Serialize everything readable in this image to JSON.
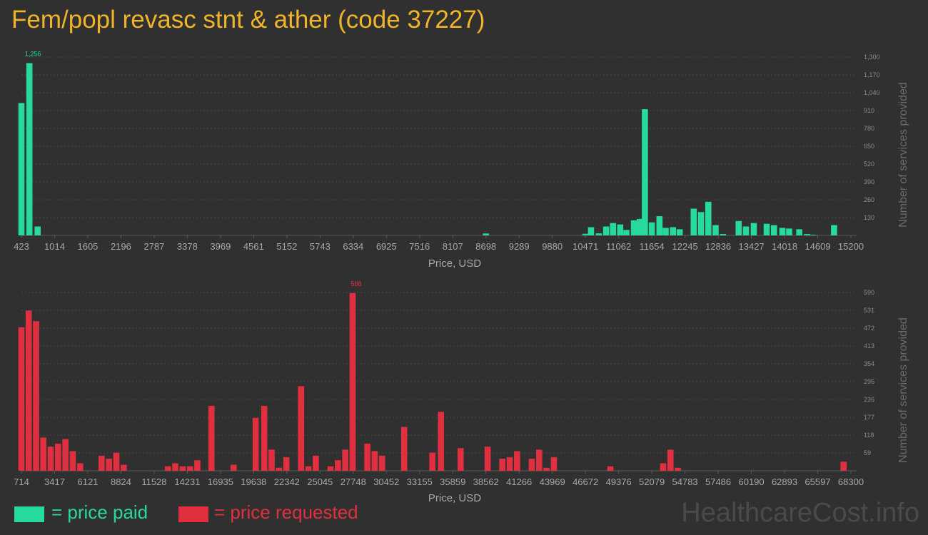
{
  "title": "Fem/popl revasc stnt & ather (code 37227)",
  "watermark": "HealthcareCost.info",
  "legend": {
    "paid_label": "= price paid",
    "requested_label": "= price requested",
    "paid_color": "#27d99a",
    "requested_color": "#e03040"
  },
  "chart_data": [
    {
      "type": "bar",
      "name": "price paid",
      "color": "#27d99a",
      "xlabel": "Price, USD",
      "ylabel": "Number of services provided",
      "xlim": [
        423,
        15200
      ],
      "ylim": [
        0,
        1300
      ],
      "x_ticks": [
        423,
        1014,
        1605,
        2196,
        2787,
        3378,
        3969,
        4561,
        5152,
        5743,
        6334,
        6925,
        7516,
        8107,
        8698,
        9289,
        9880,
        10471,
        11062,
        11654,
        12245,
        12836,
        13427,
        14018,
        14609,
        15200
      ],
      "y_ticks": [
        130,
        260,
        390,
        520,
        650,
        780,
        910,
        1040,
        1170,
        1300
      ],
      "peak_label": "1,256",
      "x": [
        423,
        565,
        712,
        8698,
        10471,
        10570,
        10710,
        10840,
        10962,
        11090,
        11200,
        11335,
        11440,
        11530,
        11654,
        11790,
        11900,
        12030,
        12150,
        12400,
        12530,
        12660,
        12790,
        12920,
        13200,
        13330,
        13470,
        13700,
        13830,
        13980,
        14100,
        14280,
        14420,
        14530,
        14900
      ],
      "values": [
        965,
        1256,
        65,
        14,
        12,
        60,
        15,
        65,
        90,
        80,
        40,
        110,
        120,
        920,
        95,
        140,
        55,
        60,
        45,
        195,
        170,
        245,
        75,
        10,
        105,
        65,
        90,
        85,
        75,
        55,
        50,
        45,
        10,
        5,
        75
      ]
    },
    {
      "type": "bar",
      "name": "price requested",
      "color": "#e03040",
      "xlabel": "Price, USD",
      "ylabel": "Number of services provided",
      "xlim": [
        714,
        68300
      ],
      "ylim": [
        0,
        590
      ],
      "x_ticks": [
        714,
        3417,
        6121,
        8824,
        11528,
        14231,
        16935,
        19638,
        22342,
        25045,
        27748,
        30452,
        33155,
        35859,
        38562,
        41266,
        43969,
        46672,
        49376,
        52079,
        54783,
        57486,
        60190,
        62893,
        65597,
        68300
      ],
      "y_ticks": [
        59,
        118,
        177,
        236,
        295,
        354,
        413,
        472,
        531,
        590
      ],
      "peak_label": "588",
      "x": [
        714,
        1310,
        1910,
        2500,
        3100,
        3700,
        4300,
        4900,
        5500,
        7250,
        7850,
        8450,
        9050,
        12650,
        13250,
        13850,
        14450,
        15050,
        16200,
        18000,
        19800,
        20500,
        21100,
        21700,
        22300,
        23500,
        24100,
        24700,
        25900,
        26500,
        27100,
        27700,
        28900,
        29500,
        30100,
        31900,
        34200,
        34900,
        36500,
        38700,
        39900,
        40500,
        41100,
        42300,
        42900,
        43500,
        44100,
        48700,
        53000,
        53600,
        54200,
        67700
      ],
      "values": [
        475,
        530,
        495,
        110,
        80,
        90,
        105,
        65,
        25,
        50,
        40,
        60,
        20,
        15,
        25,
        15,
        15,
        35,
        215,
        20,
        175,
        215,
        70,
        10,
        45,
        280,
        15,
        50,
        15,
        35,
        70,
        588,
        90,
        65,
        50,
        145,
        60,
        195,
        75,
        80,
        40,
        45,
        65,
        40,
        70,
        10,
        45,
        15,
        25,
        70,
        10,
        30
      ]
    }
  ]
}
